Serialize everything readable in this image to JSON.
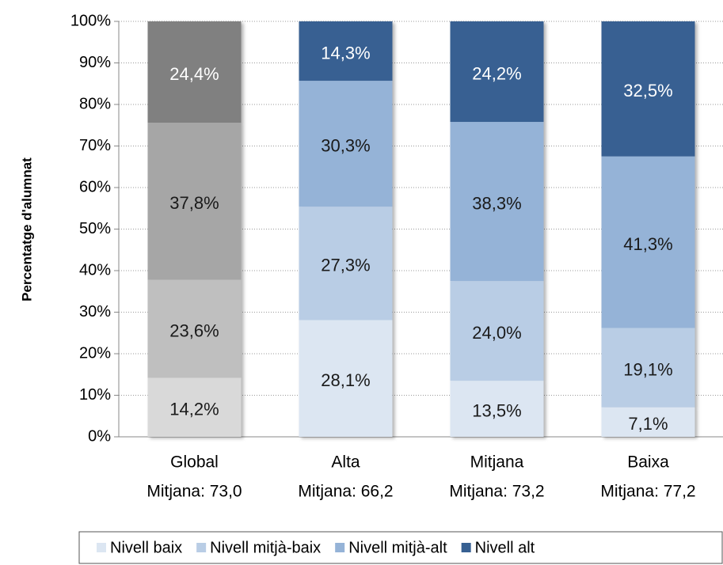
{
  "chart_data": {
    "type": "stacked_bar",
    "y_axis_label": "Percentatge d'alumnat",
    "categories": [
      "Global",
      "Alta",
      "Mitjana",
      "Baixa"
    ],
    "category_subtitles": [
      "Mitjana: 73,0",
      "Mitjana: 66,2",
      "Mitjana: 73,2",
      "Mitjana: 77,2"
    ],
    "ylim": [
      0,
      100
    ],
    "yticks": [
      {
        "value": 0,
        "label": "0%"
      },
      {
        "value": 10,
        "label": "10%"
      },
      {
        "value": 20,
        "label": "20%"
      },
      {
        "value": 30,
        "label": "30%"
      },
      {
        "value": 40,
        "label": "40%"
      },
      {
        "value": 50,
        "label": "50%"
      },
      {
        "value": 60,
        "label": "60%"
      },
      {
        "value": 70,
        "label": "70%"
      },
      {
        "value": 80,
        "label": "80%"
      },
      {
        "value": 90,
        "label": "90%"
      },
      {
        "value": 100,
        "label": "100%"
      }
    ],
    "grid": true,
    "legend": "bottom",
    "series": [
      {
        "name": "Nivell baix",
        "color": "#dce6f2",
        "colors": [
          "#d9d9d9",
          "#dce6f2",
          "#dce6f2",
          "#dce6f2"
        ],
        "label_color": "#1a1a1a",
        "values": [
          14.2,
          28.1,
          13.5,
          7.1
        ],
        "value_labels": [
          "14,2%",
          "28,1%",
          "13,5%",
          "7,1%"
        ]
      },
      {
        "name": "Nivell mitjà-baix",
        "color": "#b9cde5",
        "colors": [
          "#bfbfbf",
          "#b9cde5",
          "#b9cde5",
          "#b9cde5"
        ],
        "label_color": "#1a1a1a",
        "values": [
          23.6,
          27.3,
          24.0,
          19.1
        ],
        "value_labels": [
          "23,6%",
          "27,3%",
          "24,0%",
          "19,1%"
        ]
      },
      {
        "name": "Nivell mitjà-alt",
        "color": "#95b3d7",
        "colors": [
          "#a6a6a6",
          "#95b3d7",
          "#95b3d7",
          "#95b3d7"
        ],
        "label_color": "#1a1a1a",
        "values": [
          37.8,
          30.3,
          38.3,
          41.3
        ],
        "value_labels": [
          "37,8%",
          "30,3%",
          "38,3%",
          "41,3%"
        ]
      },
      {
        "name": "Nivell alt",
        "color": "#376092",
        "colors": [
          "#808080",
          "#376092",
          "#376092",
          "#376092"
        ],
        "label_color": "#ffffff",
        "values": [
          24.4,
          14.3,
          24.2,
          32.5
        ],
        "value_labels": [
          "24,4%",
          "14,3%",
          "24,2%",
          "32,5%"
        ]
      }
    ]
  }
}
